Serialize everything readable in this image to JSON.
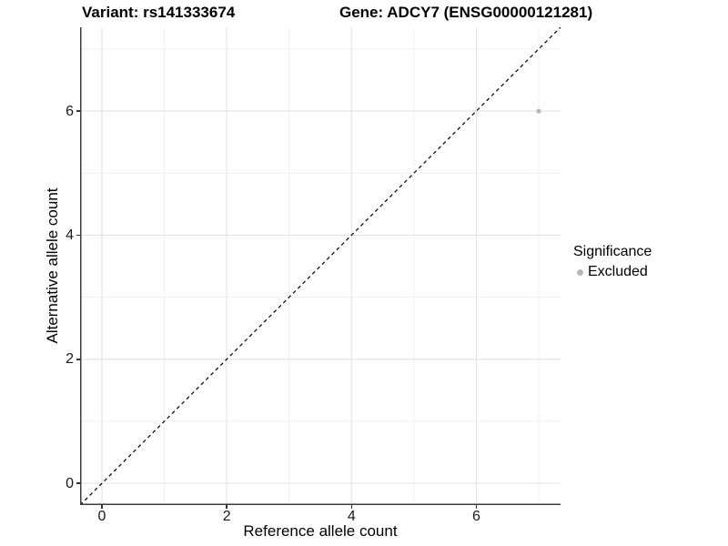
{
  "chart_data": {
    "type": "scatter",
    "title_left": "Variant: rs141333674",
    "title_right": "Gene: ADCY7 (ENSG00000121281)",
    "xlabel": "Reference allele count",
    "ylabel": "Alternative allele count",
    "xlim": [
      -0.35,
      7.35
    ],
    "ylim": [
      -0.35,
      7.35
    ],
    "x_ticks": [
      0,
      2,
      4,
      6
    ],
    "y_ticks": [
      0,
      2,
      4,
      6
    ],
    "x_minor_ticks": [
      1,
      3,
      5,
      7
    ],
    "y_minor_ticks": [
      1,
      3,
      5,
      7
    ],
    "grid": true,
    "series": [
      {
        "name": "Excluded",
        "color": "#b9b9b9",
        "points": [
          [
            7,
            6
          ]
        ]
      }
    ],
    "identity_line": {
      "slope": 1,
      "intercept": 0,
      "style": "dashed",
      "color": "#000000"
    },
    "legend": {
      "position": "right",
      "title": "Significance",
      "items": [
        {
          "label": "Excluded",
          "color": "#b9b9b9"
        }
      ]
    }
  },
  "colors": {
    "grid_major": "#e3e3e3",
    "grid_minor": "#f1f1f1",
    "axis": "#3c3c3c",
    "tick": "#333333",
    "point": "#b9b9b9",
    "identity_line": "#000000"
  }
}
